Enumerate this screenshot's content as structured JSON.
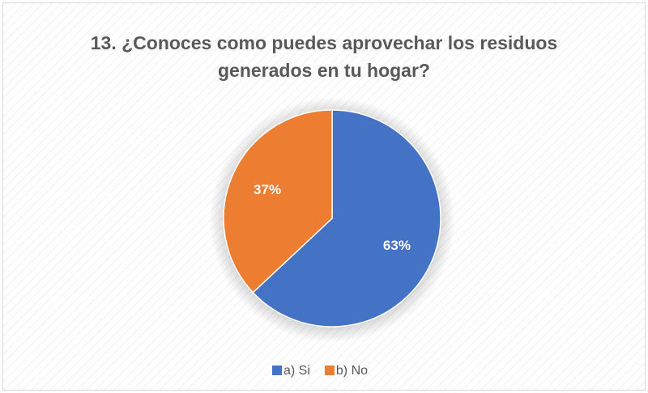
{
  "chart_data": {
    "type": "pie",
    "title": "13. ¿Conoces como puedes aprovechar los residuos generados en tu hogar?",
    "categories": [
      "a) Si",
      "b) No"
    ],
    "values": [
      63,
      37
    ],
    "value_labels": [
      "63%",
      "37%"
    ],
    "colors": [
      "#4472c4",
      "#ed7d31"
    ],
    "legend": "bottom"
  }
}
